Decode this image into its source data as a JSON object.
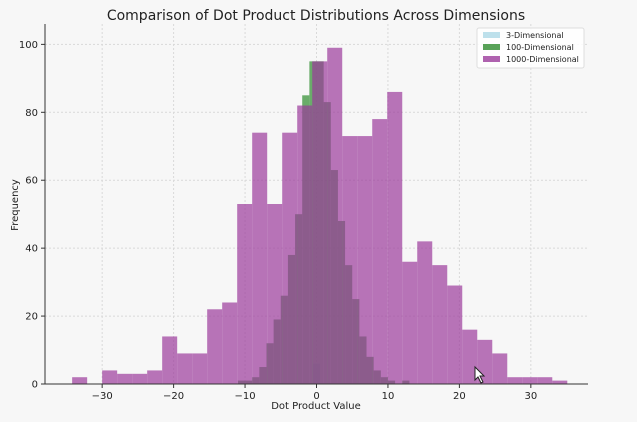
{
  "chart_data": {
    "type": "bar",
    "title": "Comparison of Dot Product Distributions Across Dimensions",
    "xlabel": "Dot Product Value",
    "ylabel": "Frequency",
    "xlim": [
      -38,
      38
    ],
    "ylim": [
      0,
      106
    ],
    "xticks": [
      -30,
      -20,
      -10,
      0,
      10,
      20,
      30
    ],
    "yticks": [
      0,
      20,
      40,
      60,
      80,
      100
    ],
    "grid": true,
    "legend_position": "top-right",
    "series": [
      {
        "name": "3-Dimensional",
        "color": "#add8e6",
        "bins": [
          [
            -0.5,
            0,
            6
          ],
          [
            0,
            0.5,
            6
          ]
        ]
      },
      {
        "name": "100-Dimensional",
        "color": "#2e8b2e",
        "bins": [
          [
            -11,
            -10,
            1
          ],
          [
            -10,
            -9,
            1
          ],
          [
            -9,
            -8,
            2
          ],
          [
            -8,
            -7,
            5
          ],
          [
            -7,
            -6,
            12
          ],
          [
            -6,
            -5,
            19
          ],
          [
            -5,
            -4,
            26
          ],
          [
            -4,
            -3,
            38
          ],
          [
            -3,
            -2,
            50
          ],
          [
            -2,
            -1,
            85
          ],
          [
            -1,
            0,
            95
          ],
          [
            0,
            1,
            95
          ],
          [
            1,
            2,
            83
          ],
          [
            2,
            3,
            63
          ],
          [
            3,
            4,
            48
          ],
          [
            4,
            5,
            35
          ],
          [
            5,
            6,
            25
          ],
          [
            6,
            7,
            14
          ],
          [
            7,
            8,
            8
          ],
          [
            8,
            9,
            4
          ],
          [
            9,
            10,
            2
          ],
          [
            10,
            11,
            1
          ],
          [
            12,
            13,
            1
          ]
        ]
      },
      {
        "name": "1000-Dimensional",
        "color": "#9b3b9b",
        "bins": [
          [
            -34.2,
            -32.1,
            2
          ],
          [
            -30,
            -27.9,
            4
          ],
          [
            -27.9,
            -25.8,
            3
          ],
          [
            -25.8,
            -23.7,
            3
          ],
          [
            -23.7,
            -21.6,
            4
          ],
          [
            -21.6,
            -19.5,
            14
          ],
          [
            -19.5,
            -17.4,
            9
          ],
          [
            -17.4,
            -15.3,
            9
          ],
          [
            -15.3,
            -13.2,
            22
          ],
          [
            -13.2,
            -11.1,
            24
          ],
          [
            -11.1,
            -9,
            53
          ],
          [
            -9,
            -6.9,
            74
          ],
          [
            -6.9,
            -4.8,
            53
          ],
          [
            -4.8,
            -2.7,
            74
          ],
          [
            -2.7,
            -0.6,
            82
          ],
          [
            -0.6,
            1.5,
            95
          ],
          [
            1.5,
            3.6,
            99
          ],
          [
            3.6,
            5.7,
            73
          ],
          [
            5.7,
            7.8,
            73
          ],
          [
            7.8,
            9.9,
            78
          ],
          [
            9.9,
            12,
            86
          ],
          [
            12,
            14.1,
            36
          ],
          [
            14.1,
            16.2,
            42
          ],
          [
            16.2,
            18.3,
            35
          ],
          [
            18.3,
            20.4,
            29
          ],
          [
            20.4,
            22.5,
            16
          ],
          [
            22.5,
            24.6,
            13
          ],
          [
            24.6,
            26.7,
            9
          ],
          [
            26.7,
            28.8,
            2
          ],
          [
            28.8,
            30.9,
            2
          ],
          [
            30.9,
            33,
            2
          ],
          [
            33,
            35.1,
            1
          ]
        ]
      }
    ]
  }
}
